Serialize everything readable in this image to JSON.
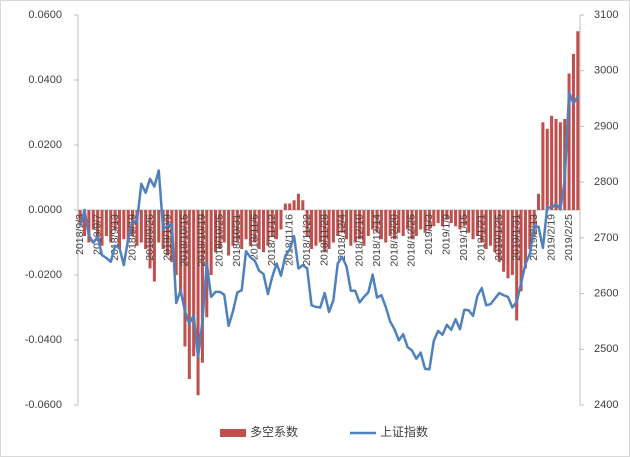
{
  "chart_data": {
    "type": "bar-line",
    "categories": [
      "2018/9/3",
      null,
      null,
      null,
      "2018/9/7",
      null,
      null,
      null,
      "2018/9/13",
      null,
      null,
      null,
      "2018/9/19",
      null,
      null,
      null,
      "2018/9/26",
      null,
      null,
      null,
      "2018/10/9",
      null,
      null,
      null,
      "2018/10/15",
      null,
      null,
      null,
      "2018/10/19",
      null,
      null,
      null,
      "2018/10/25",
      null,
      null,
      null,
      "2018/10/31",
      null,
      null,
      null,
      "2018/11/6",
      null,
      null,
      null,
      "2018/11/12",
      null,
      null,
      null,
      "2018/11/16",
      null,
      null,
      null,
      "2018/11/22",
      null,
      null,
      null,
      "2018/11/28",
      null,
      null,
      null,
      "2018/12/4",
      null,
      null,
      null,
      "2018/12/10",
      null,
      null,
      null,
      "2018/12/14",
      null,
      null,
      null,
      "2018/12/20",
      null,
      null,
      null,
      "2018/12/26",
      null,
      null,
      null,
      "2019/1/3",
      null,
      null,
      null,
      "2019/1/9",
      null,
      null,
      null,
      "2019/1/15",
      null,
      null,
      null,
      "2019/1/21",
      null,
      null,
      null,
      "2019/1/25",
      null,
      null,
      null,
      "2019/1/31",
      null,
      null,
      null,
      "2019/2/13",
      null,
      null,
      null,
      "2019/2/19",
      null,
      null,
      null,
      "2019/2/25",
      null,
      null
    ],
    "series": [
      {
        "name": "多空系数",
        "color": "#c0504d",
        "type": "bar",
        "values": [
          -0.004,
          -0.008,
          -0.01,
          -0.006,
          -0.009,
          -0.011,
          -0.008,
          -0.01,
          -0.006,
          -0.012,
          -0.009,
          -0.01,
          -0.008,
          -0.011,
          -0.01,
          -0.012,
          -0.018,
          -0.022,
          -0.01,
          -0.012,
          -0.014,
          -0.016,
          -0.02,
          -0.025,
          -0.042,
          -0.052,
          -0.045,
          -0.057,
          -0.047,
          -0.033,
          -0.02,
          -0.013,
          -0.012,
          -0.01,
          -0.014,
          -0.011,
          -0.01,
          -0.012,
          -0.009,
          -0.011,
          -0.01,
          -0.012,
          -0.013,
          -0.011,
          -0.008,
          -0.009,
          -0.006,
          0.002,
          0.002,
          0.003,
          0.005,
          0.003,
          -0.008,
          -0.012,
          -0.011,
          -0.01,
          -0.013,
          -0.012,
          -0.01,
          -0.008,
          -0.007,
          -0.009,
          -0.011,
          -0.01,
          -0.009,
          -0.011,
          -0.008,
          -0.006,
          -0.007,
          -0.009,
          -0.01,
          -0.008,
          -0.009,
          -0.007,
          -0.008,
          -0.006,
          -0.009,
          -0.008,
          -0.006,
          -0.007,
          -0.006,
          -0.005,
          -0.004,
          -0.005,
          -0.003,
          -0.004,
          -0.005,
          -0.006,
          -0.005,
          -0.007,
          -0.009,
          -0.008,
          -0.01,
          -0.012,
          -0.011,
          -0.013,
          -0.016,
          -0.019,
          -0.021,
          -0.02,
          -0.034,
          -0.025,
          -0.018,
          -0.012,
          -0.008,
          0.005,
          0.027,
          0.025,
          0.029,
          0.028,
          0.027,
          0.028,
          0.042,
          0.048,
          0.055
        ]
      },
      {
        "name": "上证指数",
        "color": "#4f81bd",
        "type": "line",
        "axis": "y2",
        "values": [
          2720,
          2750,
          2704,
          2691,
          2702,
          2669,
          2664,
          2657,
          2686,
          2682,
          2651,
          2699,
          2730,
          2729,
          2797,
          2781,
          2806,
          2792,
          2821,
          2716,
          2721,
          2725,
          2583,
          2606,
          2568,
          2546,
          2561,
          2486,
          2550,
          2654,
          2594,
          2603,
          2603,
          2598,
          2542,
          2568,
          2602,
          2606,
          2676,
          2665,
          2659,
          2641,
          2635,
          2599,
          2630,
          2654,
          2632,
          2668,
          2679,
          2703,
          2645,
          2651,
          2645,
          2579,
          2576,
          2575,
          2601,
          2567,
          2588,
          2654,
          2666,
          2649,
          2605,
          2605,
          2584,
          2594,
          2602,
          2634,
          2593,
          2597,
          2576,
          2550,
          2536,
          2516,
          2527,
          2504,
          2498,
          2483,
          2494,
          2465,
          2464,
          2515,
          2533,
          2526,
          2544,
          2535,
          2554,
          2536,
          2571,
          2570,
          2560,
          2596,
          2610,
          2579,
          2581,
          2591,
          2601,
          2597,
          2594,
          2575,
          2585,
          2618,
          2653,
          2671,
          2721,
          2720,
          2682,
          2755,
          2754,
          2761,
          2751,
          2804,
          2961,
          2941,
          2954
        ]
      }
    ],
    "ylim": [
      -0.06,
      0.06
    ],
    "yticks": [
      {
        "value": -0.06,
        "label": "-0.0600"
      },
      {
        "value": -0.04,
        "label": "-0.0400"
      },
      {
        "value": -0.02,
        "label": "-0.0200"
      },
      {
        "value": 0,
        "label": "0.0000"
      },
      {
        "value": 0.02,
        "label": "0.0200"
      },
      {
        "value": 0.04,
        "label": "0.0400"
      },
      {
        "value": 0.06,
        "label": "0.0600"
      }
    ],
    "y2lim": [
      2400,
      3100
    ],
    "y2ticks": [
      2400,
      2500,
      2600,
      2700,
      2800,
      2900,
      3000,
      3100
    ],
    "legend": "bottom"
  }
}
